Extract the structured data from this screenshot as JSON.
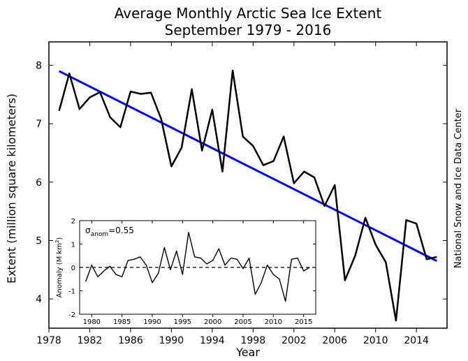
{
  "title_line1": "Average Monthly Arctic Sea Ice Extent",
  "title_line2": "September 1979 - 2016",
  "xlabel": "Year",
  "ylabel": "Extent (million square kilometers)",
  "credit": "National Snow and Ice Data Center",
  "main_chart": {
    "type": "line",
    "xlim": [
      1978,
      2017
    ],
    "ylim": [
      3.5,
      8.4
    ],
    "xticks": [
      1978,
      1982,
      1986,
      1990,
      1994,
      1998,
      2002,
      2006,
      2010,
      2014
    ],
    "yticks": [
      4,
      5,
      6,
      7,
      8
    ],
    "data_color": "#000000",
    "data_linewidth": 2.5,
    "trend_color": "#0000ff",
    "trend_linewidth": 3,
    "background_color": "#ffffff",
    "series_years": [
      1979,
      1980,
      1981,
      1982,
      1983,
      1984,
      1985,
      1986,
      1987,
      1988,
      1989,
      1990,
      1991,
      1992,
      1993,
      1994,
      1995,
      1996,
      1997,
      1998,
      1999,
      2000,
      2001,
      2002,
      2003,
      2004,
      2005,
      2006,
      2007,
      2008,
      2009,
      2010,
      2011,
      2012,
      2013,
      2014,
      2015,
      2016
    ],
    "series_values": [
      7.22,
      7.86,
      7.25,
      7.45,
      7.54,
      7.11,
      6.94,
      7.55,
      7.51,
      7.53,
      7.08,
      6.27,
      6.59,
      7.59,
      6.54,
      7.24,
      6.18,
      7.91,
      6.78,
      6.62,
      6.29,
      6.36,
      6.78,
      5.98,
      6.18,
      6.08,
      5.59,
      5.95,
      4.32,
      4.74,
      5.39,
      4.93,
      4.63,
      3.63,
      5.35,
      5.29,
      4.68,
      4.72
    ],
    "trend_x": [
      1979,
      2016
    ],
    "trend_y": [
      7.9,
      4.65
    ]
  },
  "inset_chart": {
    "type": "line",
    "label_anom": "σ",
    "label_anom_sub": "anom",
    "label_anom_val": "=0.55",
    "xlabel": "",
    "ylabel": "Anomaly (M km²)",
    "xlim": [
      1978,
      2017
    ],
    "ylim": [
      -2,
      2
    ],
    "xticks": [
      1980,
      1985,
      1990,
      1995,
      2000,
      2005,
      2010,
      2015
    ],
    "yticks": [
      -2,
      -1,
      0,
      1,
      2
    ],
    "data_color": "#000000",
    "data_linewidth": 1.4,
    "zeroline_color": "#000000",
    "zeroline_dash": "5,4",
    "series_years": [
      1979,
      1980,
      1981,
      1982,
      1983,
      1984,
      1985,
      1986,
      1987,
      1988,
      1989,
      1990,
      1991,
      1992,
      1993,
      1994,
      1995,
      1996,
      1997,
      1998,
      1999,
      2000,
      2001,
      2002,
      2003,
      2004,
      2005,
      2006,
      2007,
      2008,
      2009,
      2010,
      2011,
      2012,
      2013,
      2014,
      2015,
      2016
    ],
    "series_values": [
      -0.6,
      0.1,
      -0.4,
      -0.15,
      0.05,
      -0.3,
      -0.4,
      0.3,
      0.35,
      0.45,
      0.1,
      -0.65,
      -0.25,
      0.85,
      -0.1,
      0.7,
      -0.3,
      1.5,
      0.45,
      0.4,
      0.15,
      0.3,
      0.8,
      0.1,
      0.4,
      0.35,
      -0.05,
      0.4,
      -1.15,
      -0.65,
      0.1,
      -0.3,
      -0.5,
      -1.45,
      0.35,
      0.4,
      -0.15,
      0.0
    ]
  }
}
